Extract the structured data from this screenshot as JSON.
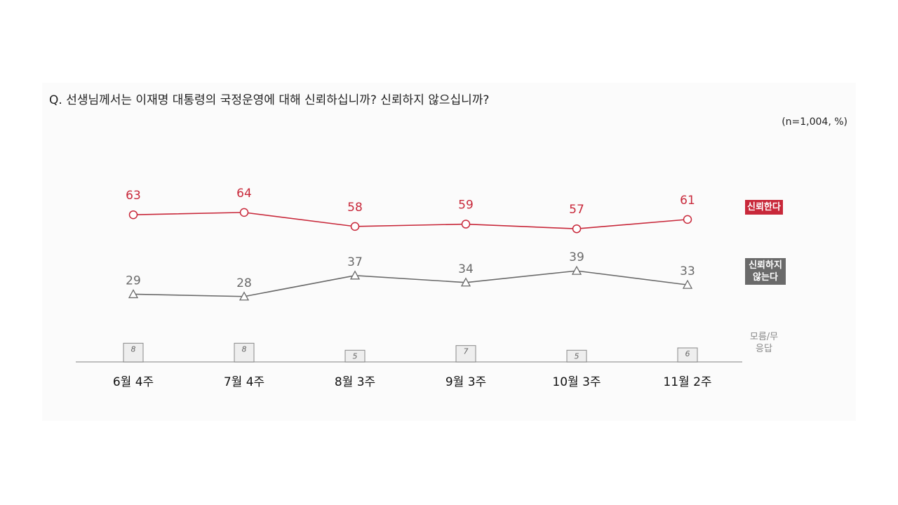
{
  "chart_data": {
    "type": "line",
    "title": "Q. 선생님께서는 이재명 대통령의 국정운영에 대해 신뢰하십니까? 신뢰하지 않으십니까?",
    "subtitle": "(n=1,004, %)",
    "categories": [
      "6월 4주",
      "7월 4주",
      "8월 3주",
      "9월 3주",
      "10월 3주",
      "11월 2주"
    ],
    "ylim": [
      0,
      100
    ],
    "series": [
      {
        "name": "신뢰한다",
        "color": "#c8283a",
        "marker": "circle",
        "values": [
          63,
          64,
          58,
          59,
          57,
          61
        ]
      },
      {
        "name": "신뢰하지 않는다",
        "color": "#6a6a6a",
        "marker": "triangle",
        "values": [
          29,
          28,
          37,
          34,
          39,
          33
        ]
      },
      {
        "name": "모름/무응답",
        "color": "#888888",
        "type": "bar",
        "values": [
          8,
          8,
          5,
          7,
          5,
          6
        ]
      }
    ]
  }
}
